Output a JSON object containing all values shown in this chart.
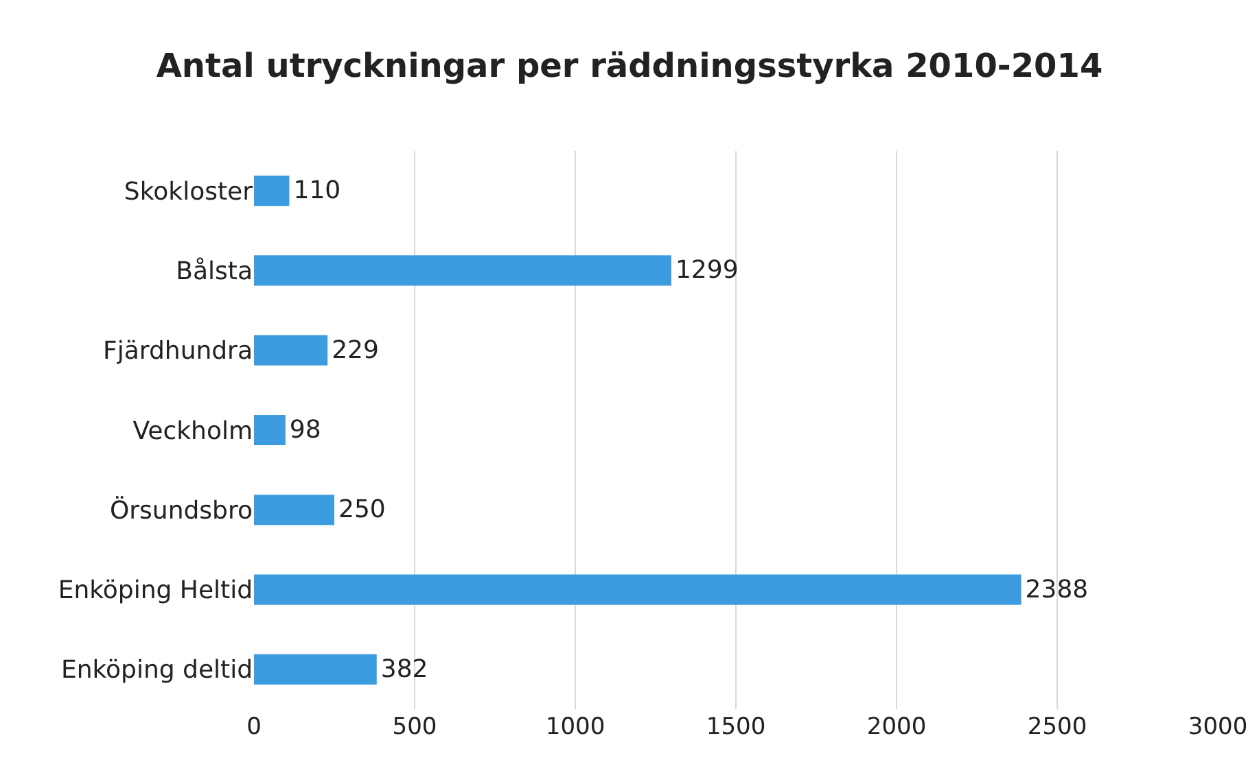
{
  "chart_data": {
    "type": "bar",
    "orientation": "horizontal",
    "title": "Antal utryckningar per räddningsstyrka 2010-2014",
    "categories": [
      "Skokloster",
      "Bålsta",
      "Fjärdhundra",
      "Veckholm",
      "Örsundsbro",
      "Enköping Heltid",
      "Enköping deltid"
    ],
    "values": [
      110,
      1299,
      229,
      98,
      250,
      2388,
      382
    ],
    "color": "#3d9be0",
    "xlim": [
      0,
      3000
    ],
    "xticks": [
      0,
      500,
      1000,
      1500,
      2000,
      2500,
      3000
    ],
    "grid": "x",
    "data_labels": true,
    "legend": false
  }
}
